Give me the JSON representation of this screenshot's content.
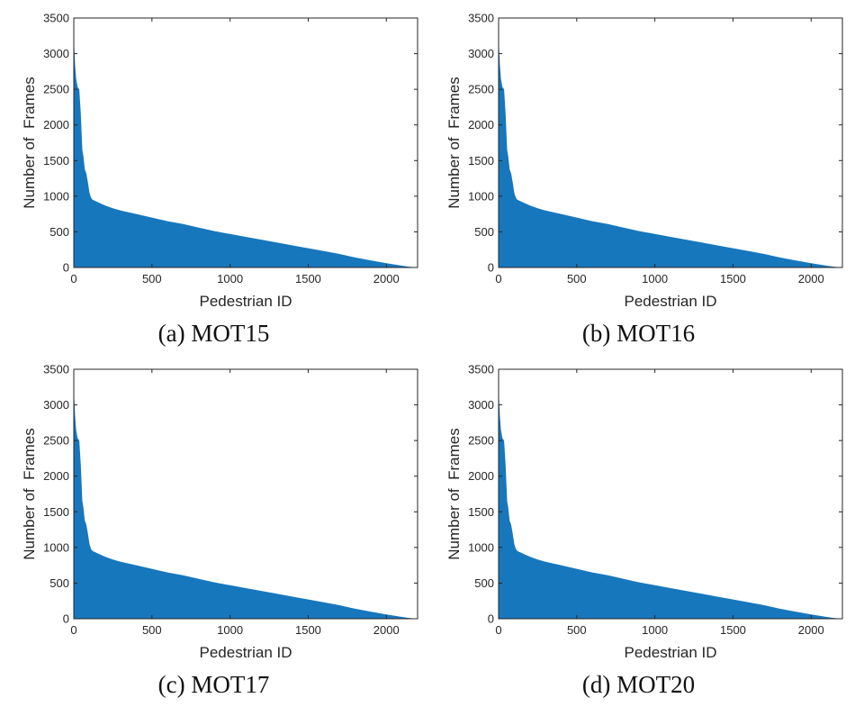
{
  "colors": {
    "area": "#1777bd",
    "axis": "#262626"
  },
  "chart_data": [
    {
      "type": "area",
      "caption": "(a) MOT15",
      "xlabel": "Pedestrian ID",
      "ylabel": "Number of  Frames",
      "xlim": [
        0,
        2200
      ],
      "ylim": [
        0,
        3500
      ],
      "xticks": [
        0,
        500,
        1000,
        1500,
        2000
      ],
      "yticks": [
        0,
        500,
        1000,
        1500,
        2000,
        2500,
        3000,
        3500
      ],
      "x": [
        0,
        3,
        8,
        15,
        25,
        35,
        45,
        55,
        62,
        70,
        80,
        90,
        100,
        110,
        120,
        140,
        160,
        200,
        250,
        300,
        400,
        500,
        600,
        700,
        800,
        900,
        1000,
        1100,
        1200,
        1300,
        1400,
        1500,
        1600,
        1700,
        1800,
        1900,
        2000,
        2100,
        2150,
        2180,
        2200
      ],
      "y": [
        3320,
        3100,
        2850,
        2650,
        2530,
        2500,
        2150,
        1650,
        1550,
        1380,
        1320,
        1200,
        1050,
        980,
        950,
        930,
        910,
        870,
        830,
        800,
        750,
        700,
        650,
        610,
        560,
        510,
        470,
        430,
        390,
        350,
        310,
        270,
        230,
        190,
        140,
        100,
        60,
        25,
        10,
        5,
        0
      ],
      "grid": false
    },
    {
      "type": "area",
      "caption": "(b) MOT16",
      "xlabel": "Pedestrian ID",
      "ylabel": "Number of  Frames",
      "xlim": [
        0,
        2200
      ],
      "ylim": [
        0,
        3500
      ],
      "xticks": [
        0,
        500,
        1000,
        1500,
        2000
      ],
      "yticks": [
        0,
        500,
        1000,
        1500,
        2000,
        2500,
        3000,
        3500
      ],
      "x": [
        0,
        3,
        8,
        15,
        25,
        35,
        45,
        55,
        62,
        70,
        80,
        90,
        100,
        110,
        120,
        140,
        160,
        200,
        250,
        300,
        400,
        500,
        600,
        700,
        800,
        900,
        1000,
        1100,
        1200,
        1300,
        1400,
        1500,
        1600,
        1700,
        1800,
        1900,
        2000,
        2100,
        2150,
        2180,
        2200
      ],
      "y": [
        3320,
        3100,
        2850,
        2650,
        2530,
        2500,
        2150,
        1650,
        1550,
        1380,
        1320,
        1200,
        1050,
        980,
        950,
        930,
        910,
        870,
        830,
        800,
        750,
        700,
        650,
        610,
        560,
        510,
        470,
        430,
        390,
        350,
        310,
        270,
        230,
        190,
        140,
        100,
        60,
        25,
        10,
        5,
        0
      ],
      "grid": false
    },
    {
      "type": "area",
      "caption": "(c) MOT17",
      "xlabel": "Pedestrian ID",
      "ylabel": "Number of  Frames",
      "xlim": [
        0,
        2200
      ],
      "ylim": [
        0,
        3500
      ],
      "xticks": [
        0,
        500,
        1000,
        1500,
        2000
      ],
      "yticks": [
        0,
        500,
        1000,
        1500,
        2000,
        2500,
        3000,
        3500
      ],
      "x": [
        0,
        3,
        8,
        15,
        25,
        35,
        45,
        55,
        62,
        70,
        80,
        90,
        100,
        110,
        120,
        140,
        160,
        200,
        250,
        300,
        400,
        500,
        600,
        700,
        800,
        900,
        1000,
        1100,
        1200,
        1300,
        1400,
        1500,
        1600,
        1700,
        1800,
        1900,
        2000,
        2100,
        2150,
        2180,
        2200
      ],
      "y": [
        3320,
        3100,
        2850,
        2650,
        2530,
        2500,
        2150,
        1650,
        1550,
        1380,
        1320,
        1200,
        1050,
        980,
        950,
        930,
        910,
        870,
        830,
        800,
        750,
        700,
        650,
        610,
        560,
        510,
        470,
        430,
        390,
        350,
        310,
        270,
        230,
        190,
        140,
        100,
        60,
        25,
        10,
        5,
        0
      ],
      "grid": false
    },
    {
      "type": "area",
      "caption": "(d) MOT20",
      "xlabel": "Pedestrian ID",
      "ylabel": "Number of  Frames",
      "xlim": [
        0,
        2200
      ],
      "ylim": [
        0,
        3500
      ],
      "xticks": [
        0,
        500,
        1000,
        1500,
        2000
      ],
      "yticks": [
        0,
        500,
        1000,
        1500,
        2000,
        2500,
        3000,
        3500
      ],
      "x": [
        0,
        3,
        8,
        15,
        25,
        35,
        45,
        55,
        62,
        70,
        80,
        90,
        100,
        110,
        120,
        140,
        160,
        200,
        250,
        300,
        400,
        500,
        600,
        700,
        800,
        900,
        1000,
        1100,
        1200,
        1300,
        1400,
        1500,
        1600,
        1700,
        1800,
        1900,
        2000,
        2100,
        2150,
        2180,
        2200
      ],
      "y": [
        3320,
        3100,
        2850,
        2650,
        2530,
        2500,
        2150,
        1650,
        1550,
        1380,
        1320,
        1200,
        1050,
        980,
        950,
        930,
        910,
        870,
        830,
        800,
        750,
        700,
        650,
        610,
        560,
        510,
        470,
        430,
        390,
        350,
        310,
        270,
        230,
        190,
        140,
        100,
        60,
        25,
        10,
        5,
        0
      ],
      "grid": false
    }
  ]
}
